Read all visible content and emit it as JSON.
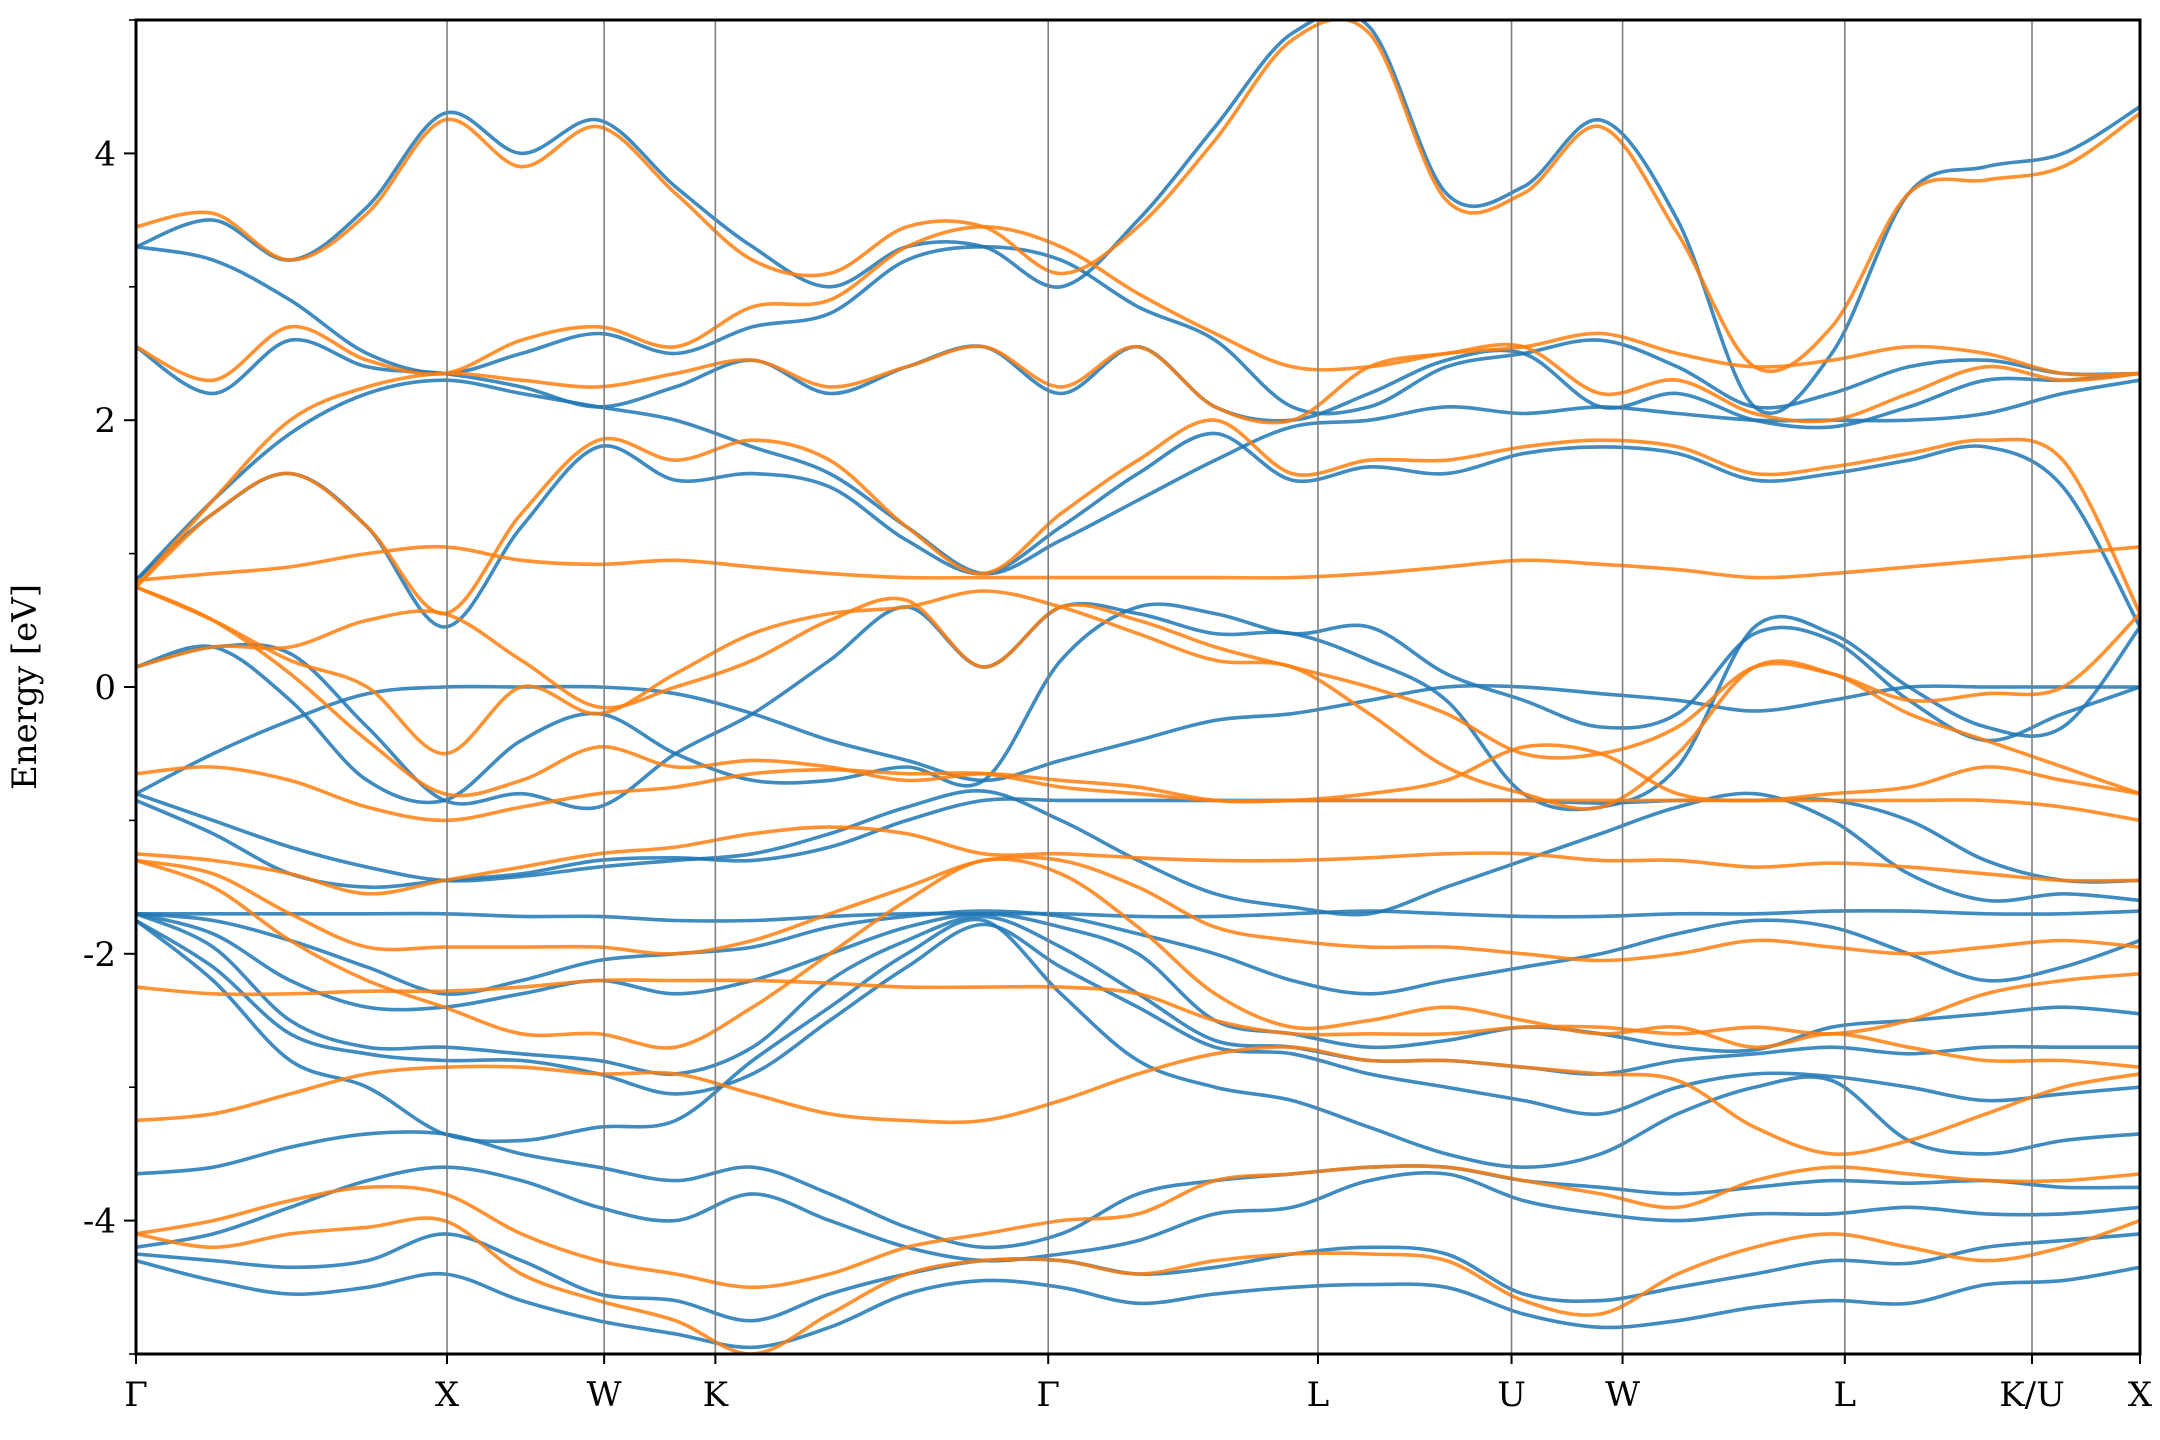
{
  "chart_data": {
    "type": "line",
    "title": "",
    "xlabel": "",
    "ylabel": "Energy [eV]",
    "ylim": [
      -5,
      5
    ],
    "yticks_major": [
      -4,
      -2,
      0,
      2,
      4
    ],
    "yticks_minor": [
      -5,
      -3,
      -1,
      1,
      3,
      5
    ],
    "grid": false,
    "legend": "none",
    "kpath_positions": [
      0,
      0.1552,
      0.2336,
      0.2891,
      0.4552,
      0.5898,
      0.6864,
      0.7418,
      0.8527,
      0.9461,
      1.0
    ],
    "kpath_labels": [
      "Γ",
      "X",
      "W",
      "K",
      "Γ",
      "L",
      "U",
      "W",
      "L",
      "K/U",
      "X"
    ],
    "colors": {
      "blue": "#1f77b4",
      "orange": "#ff7f0e",
      "vline": "#7f7f7f",
      "axes": "#000000"
    },
    "band_set_colors": [
      "#1f77b4",
      "#ff7f0e"
    ],
    "series": [
      {
        "color": "#1f77b4",
        "bands": [
          [
            -4.3,
            -4.45,
            -4.55,
            -4.5,
            -4.4,
            -4.6,
            -4.75,
            -4.85,
            -4.95,
            -4.8,
            -4.55,
            -4.45,
            -4.5,
            -4.62,
            -4.55,
            -4.5,
            -4.48,
            -4.5,
            -4.7,
            -4.8,
            -4.75,
            -4.65,
            -4.6,
            -4.62,
            -4.48,
            -4.45,
            -4.35
          ],
          [
            -4.25,
            -4.3,
            -4.35,
            -4.3,
            -4.1,
            -4.3,
            -4.55,
            -4.6,
            -4.75,
            -4.55,
            -4.4,
            -4.3,
            -4.3,
            -4.4,
            -4.35,
            -4.25,
            -4.2,
            -4.25,
            -4.55,
            -4.6,
            -4.5,
            -4.4,
            -4.3,
            -4.32,
            -4.2,
            -4.15,
            -4.1
          ],
          [
            -4.2,
            -4.1,
            -3.9,
            -3.7,
            -3.6,
            -3.7,
            -3.9,
            -4.0,
            -3.8,
            -4.0,
            -4.2,
            -4.3,
            -4.25,
            -4.15,
            -3.95,
            -3.9,
            -3.7,
            -3.65,
            -3.85,
            -3.95,
            -4.0,
            -3.95,
            -3.95,
            -3.9,
            -3.95,
            -3.95,
            -3.9
          ],
          [
            -3.65,
            -3.6,
            -3.45,
            -3.35,
            -3.35,
            -3.5,
            -3.6,
            -3.7,
            -3.6,
            -3.8,
            -4.05,
            -4.2,
            -4.1,
            -3.8,
            -3.7,
            -3.65,
            -3.6,
            -3.6,
            -3.7,
            -3.75,
            -3.8,
            -3.75,
            -3.7,
            -3.72,
            -3.7,
            -3.75,
            -3.75
          ],
          [
            -1.75,
            -2.2,
            -2.8,
            -3.0,
            -3.35,
            -3.4,
            -3.3,
            -3.25,
            -2.8,
            -2.4,
            -2.0,
            -1.75,
            -2.3,
            -2.8,
            -3.0,
            -3.1,
            -3.3,
            -3.5,
            -3.6,
            -3.5,
            -3.2,
            -3.0,
            -2.95,
            -3.4,
            -3.5,
            -3.4,
            -3.35
          ],
          [
            -1.75,
            -2.1,
            -2.6,
            -2.75,
            -2.8,
            -2.8,
            -2.9,
            -3.05,
            -2.9,
            -2.5,
            -2.1,
            -1.78,
            -2.1,
            -2.4,
            -2.7,
            -2.75,
            -2.9,
            -3.0,
            -3.1,
            -3.2,
            -3.0,
            -2.9,
            -2.92,
            -3.0,
            -3.1,
            -3.05,
            -3.0
          ],
          [
            -1.7,
            -1.95,
            -2.5,
            -2.7,
            -2.7,
            -2.75,
            -2.8,
            -2.9,
            -2.7,
            -2.2,
            -1.9,
            -1.72,
            -1.95,
            -2.3,
            -2.65,
            -2.7,
            -2.8,
            -2.8,
            -2.85,
            -2.9,
            -2.8,
            -2.75,
            -2.7,
            -2.75,
            -2.7,
            -2.7,
            -2.7
          ],
          [
            -1.7,
            -1.85,
            -2.2,
            -2.4,
            -2.4,
            -2.3,
            -2.2,
            -2.3,
            -2.2,
            -2.0,
            -1.8,
            -1.7,
            -1.8,
            -2.0,
            -2.5,
            -2.6,
            -2.7,
            -2.65,
            -2.55,
            -2.6,
            -2.7,
            -2.72,
            -2.55,
            -2.5,
            -2.45,
            -2.4,
            -2.45
          ],
          [
            -1.7,
            -1.75,
            -1.9,
            -2.1,
            -2.3,
            -2.2,
            -2.05,
            -2.0,
            -1.95,
            -1.8,
            -1.72,
            -1.68,
            -1.72,
            -1.85,
            -2.0,
            -2.2,
            -2.3,
            -2.2,
            -2.1,
            -2.0,
            -1.85,
            -1.75,
            -1.8,
            -2.0,
            -2.2,
            -2.1,
            -1.9
          ],
          [
            -1.7,
            -1.7,
            -1.7,
            -1.7,
            -1.7,
            -1.72,
            -1.72,
            -1.75,
            -1.75,
            -1.72,
            -1.7,
            -1.7,
            -1.7,
            -1.72,
            -1.72,
            -1.7,
            -1.68,
            -1.7,
            -1.72,
            -1.72,
            -1.7,
            -1.7,
            -1.68,
            -1.68,
            -1.7,
            -1.7,
            -1.68
          ],
          [
            -0.85,
            -1.1,
            -1.4,
            -1.5,
            -1.45,
            -1.4,
            -1.3,
            -1.28,
            -1.3,
            -1.2,
            -1.0,
            -0.85,
            -0.85,
            -0.85,
            -0.85,
            -0.85,
            -0.85,
            -0.85,
            -0.85,
            -0.87,
            -0.85,
            -0.85,
            -0.85,
            -1.0,
            -1.3,
            -1.45,
            -1.45
          ],
          [
            -0.8,
            -1.0,
            -1.2,
            -1.35,
            -1.45,
            -1.42,
            -1.35,
            -1.3,
            -1.25,
            -1.1,
            -0.9,
            -0.78,
            -1.0,
            -1.3,
            -1.55,
            -1.65,
            -1.7,
            -1.5,
            -1.3,
            -1.1,
            -0.9,
            -0.8,
            -1.0,
            -1.4,
            -1.6,
            -1.55,
            -1.6
          ],
          [
            -0.8,
            -0.5,
            -0.25,
            -0.05,
            0.0,
            0.0,
            0.0,
            -0.05,
            -0.2,
            -0.4,
            -0.55,
            -0.7,
            -0.55,
            -0.4,
            -0.25,
            -0.2,
            -0.1,
            0.0,
            0.0,
            -0.05,
            -0.1,
            -0.18,
            -0.1,
            0.0,
            0.0,
            0.0,
            0.0
          ],
          [
            0.15,
            0.3,
            -0.1,
            -0.7,
            -0.85,
            -0.4,
            -0.2,
            -0.5,
            -0.7,
            -0.7,
            -0.6,
            -0.7,
            0.2,
            0.6,
            0.55,
            0.4,
            0.45,
            0.1,
            -0.1,
            -0.3,
            -0.2,
            0.4,
            0.35,
            -0.1,
            -0.4,
            -0.2,
            0.0
          ],
          [
            0.15,
            0.3,
            0.25,
            -0.3,
            -0.85,
            -0.8,
            -0.9,
            -0.5,
            -0.2,
            0.2,
            0.6,
            0.15,
            0.6,
            0.55,
            0.4,
            0.4,
            0.2,
            -0.1,
            -0.8,
            -0.9,
            -0.6,
            0.45,
            0.4,
            0.0,
            -0.3,
            -0.3,
            0.45
          ],
          [
            0.8,
            1.3,
            1.6,
            1.2,
            0.45,
            1.2,
            1.8,
            1.55,
            1.6,
            1.5,
            1.1,
            0.85,
            1.2,
            1.6,
            1.9,
            1.55,
            1.65,
            1.6,
            1.75,
            1.8,
            1.75,
            1.55,
            1.6,
            1.7,
            1.8,
            1.5,
            0.45
          ],
          [
            0.8,
            1.4,
            1.9,
            2.2,
            2.3,
            2.2,
            2.1,
            2.0,
            1.8,
            1.6,
            1.2,
            0.85,
            1.1,
            1.4,
            1.7,
            1.95,
            2.0,
            2.1,
            2.05,
            2.1,
            2.05,
            2.0,
            2.0,
            2.0,
            2.05,
            2.2,
            2.3
          ],
          [
            2.55,
            2.2,
            2.6,
            2.4,
            2.35,
            2.25,
            2.1,
            2.25,
            2.45,
            2.2,
            2.4,
            2.55,
            2.2,
            2.55,
            2.1,
            2.0,
            2.2,
            2.45,
            2.5,
            2.1,
            2.2,
            2.0,
            1.95,
            2.1,
            2.3,
            2.3,
            2.35
          ],
          [
            3.3,
            3.2,
            2.9,
            2.5,
            2.35,
            2.5,
            2.65,
            2.5,
            2.7,
            2.8,
            3.2,
            3.3,
            3.2,
            2.85,
            2.6,
            2.1,
            2.1,
            2.4,
            2.5,
            2.6,
            2.4,
            2.1,
            2.2,
            2.4,
            2.45,
            2.35,
            2.35
          ],
          [
            3.3,
            3.5,
            3.2,
            3.6,
            4.3,
            4.0,
            4.25,
            3.75,
            3.3,
            3.0,
            3.3,
            3.3,
            3.0,
            3.5,
            4.2,
            4.9,
            4.95,
            3.7,
            3.75,
            4.25,
            3.5,
            2.1,
            2.5,
            3.7,
            3.9,
            4.0,
            4.35
          ]
        ]
      },
      {
        "color": "#ff7f0e",
        "bands": [
          [
            -4.1,
            -4.2,
            -4.1,
            -4.05,
            -4.0,
            -4.4,
            -4.6,
            -4.75,
            -5.0,
            -4.7,
            -4.4,
            -4.3,
            -4.3,
            -4.4,
            -4.3,
            -4.25,
            -4.25,
            -4.3,
            -4.6,
            -4.7,
            -4.4,
            -4.2,
            -4.1,
            -4.2,
            -4.3,
            -4.2,
            -4.0
          ],
          [
            -4.1,
            -4.0,
            -3.85,
            -3.75,
            -3.8,
            -4.1,
            -4.3,
            -4.4,
            -4.5,
            -4.4,
            -4.2,
            -4.1,
            -4.0,
            -3.95,
            -3.7,
            -3.65,
            -3.6,
            -3.6,
            -3.7,
            -3.8,
            -3.9,
            -3.7,
            -3.6,
            -3.65,
            -3.7,
            -3.7,
            -3.65
          ],
          [
            -3.25,
            -3.2,
            -3.05,
            -2.9,
            -2.85,
            -2.85,
            -2.9,
            -2.9,
            -3.05,
            -3.2,
            -3.25,
            -3.25,
            -3.1,
            -2.9,
            -2.75,
            -2.7,
            -2.8,
            -2.8,
            -2.85,
            -2.9,
            -2.95,
            -3.3,
            -3.5,
            -3.4,
            -3.2,
            -3.0,
            -2.9
          ],
          [
            -2.25,
            -2.3,
            -2.3,
            -2.28,
            -2.28,
            -2.25,
            -2.2,
            -2.2,
            -2.2,
            -2.22,
            -2.25,
            -2.25,
            -2.25,
            -2.3,
            -2.5,
            -2.6,
            -2.6,
            -2.6,
            -2.55,
            -2.55,
            -2.6,
            -2.55,
            -2.6,
            -2.5,
            -2.3,
            -2.2,
            -2.15
          ],
          [
            -1.3,
            -1.5,
            -1.9,
            -2.2,
            -2.4,
            -2.6,
            -2.6,
            -2.7,
            -2.4,
            -2.0,
            -1.6,
            -1.3,
            -1.4,
            -1.8,
            -2.3,
            -2.55,
            -2.5,
            -2.4,
            -2.5,
            -2.6,
            -2.55,
            -2.7,
            -2.6,
            -2.7,
            -2.8,
            -2.8,
            -2.85
          ],
          [
            -1.3,
            -1.4,
            -1.7,
            -1.95,
            -1.95,
            -1.95,
            -1.95,
            -2.0,
            -1.9,
            -1.7,
            -1.5,
            -1.3,
            -1.3,
            -1.5,
            -1.8,
            -1.9,
            -1.95,
            -1.95,
            -2.0,
            -2.05,
            -2.0,
            -1.9,
            -1.95,
            -2.0,
            -1.95,
            -1.9,
            -1.95
          ],
          [
            -1.25,
            -1.3,
            -1.4,
            -1.55,
            -1.45,
            -1.35,
            -1.25,
            -1.2,
            -1.1,
            -1.05,
            -1.1,
            -1.25,
            -1.25,
            -1.28,
            -1.3,
            -1.3,
            -1.28,
            -1.25,
            -1.25,
            -1.3,
            -1.3,
            -1.35,
            -1.32,
            -1.35,
            -1.4,
            -1.45,
            -1.45
          ],
          [
            -0.65,
            -0.6,
            -0.7,
            -0.9,
            -1.0,
            -0.9,
            -0.8,
            -0.75,
            -0.65,
            -0.62,
            -0.65,
            -0.65,
            -0.75,
            -0.8,
            -0.85,
            -0.85,
            -0.85,
            -0.85,
            -0.85,
            -0.85,
            -0.85,
            -0.85,
            -0.85,
            -0.85,
            -0.85,
            -0.9,
            -1.0
          ],
          [
            0.75,
            0.5,
            0.1,
            -0.4,
            -0.8,
            -0.7,
            -0.45,
            -0.6,
            -0.55,
            -0.6,
            -0.7,
            -0.65,
            -0.7,
            -0.75,
            -0.85,
            -0.85,
            -0.8,
            -0.7,
            -0.45,
            -0.5,
            -0.8,
            -0.85,
            -0.8,
            -0.75,
            -0.6,
            -0.7,
            -0.8
          ],
          [
            0.75,
            0.5,
            0.2,
            0.0,
            -0.5,
            0.0,
            -0.2,
            0.1,
            0.4,
            0.55,
            0.6,
            0.72,
            0.6,
            0.4,
            0.2,
            0.15,
            -0.2,
            -0.6,
            -0.8,
            -0.9,
            -0.5,
            0.15,
            0.1,
            -0.2,
            -0.4,
            -0.6,
            -0.8
          ],
          [
            0.15,
            0.3,
            0.3,
            0.5,
            0.55,
            0.2,
            -0.15,
            0.0,
            0.2,
            0.5,
            0.65,
            0.15,
            0.6,
            0.5,
            0.3,
            0.15,
            0.0,
            -0.2,
            -0.5,
            -0.5,
            -0.3,
            0.15,
            0.1,
            -0.1,
            -0.05,
            0.0,
            0.55
          ],
          [
            0.8,
            0.85,
            0.9,
            1.0,
            1.05,
            0.95,
            0.92,
            0.95,
            0.9,
            0.85,
            0.82,
            0.82,
            0.82,
            0.82,
            0.82,
            0.82,
            0.85,
            0.9,
            0.95,
            0.92,
            0.88,
            0.82,
            0.85,
            0.9,
            0.95,
            1.0,
            1.05
          ],
          [
            0.75,
            1.3,
            1.6,
            1.2,
            0.55,
            1.3,
            1.85,
            1.7,
            1.85,
            1.7,
            1.2,
            0.85,
            1.3,
            1.7,
            2.0,
            1.6,
            1.7,
            1.7,
            1.8,
            1.85,
            1.8,
            1.6,
            1.65,
            1.75,
            1.85,
            1.7,
            0.55
          ],
          [
            0.75,
            1.4,
            2.0,
            2.25,
            2.35,
            2.3,
            2.25,
            2.35,
            2.45,
            2.25,
            2.4,
            2.55,
            2.25,
            2.55,
            2.1,
            2.0,
            2.4,
            2.5,
            2.55,
            2.2,
            2.3,
            2.05,
            2.0,
            2.2,
            2.4,
            2.3,
            2.35
          ],
          [
            2.55,
            2.3,
            2.7,
            2.45,
            2.35,
            2.6,
            2.7,
            2.55,
            2.85,
            2.9,
            3.3,
            3.45,
            3.3,
            2.95,
            2.65,
            2.4,
            2.4,
            2.5,
            2.55,
            2.65,
            2.5,
            2.4,
            2.45,
            2.55,
            2.5,
            2.35,
            2.35
          ],
          [
            3.45,
            3.55,
            3.2,
            3.55,
            4.25,
            3.9,
            4.2,
            3.7,
            3.2,
            3.1,
            3.45,
            3.45,
            3.1,
            3.45,
            4.1,
            4.85,
            4.9,
            3.65,
            3.7,
            4.2,
            3.4,
            2.4,
            2.7,
            3.7,
            3.8,
            3.9,
            4.3
          ]
        ]
      }
    ]
  }
}
